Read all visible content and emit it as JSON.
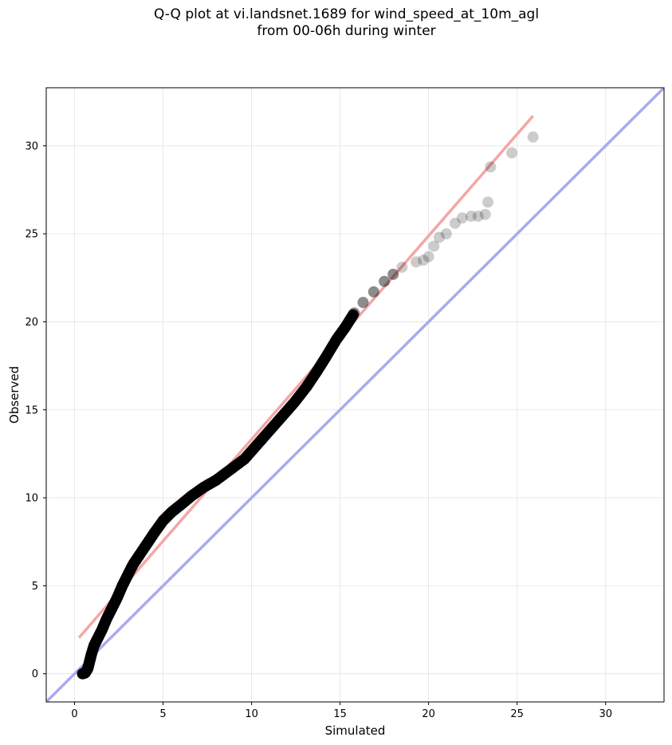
{
  "chart_data": {
    "type": "scatter",
    "title_lines": [
      "Q-Q plot at vi.landsnet.1689 for wind_speed_at_10m_agl",
      "from 00-06h during winter"
    ],
    "xlabel": "Simulated",
    "ylabel": "Observed",
    "xlim": [
      -1.6,
      33.3
    ],
    "ylim": [
      -1.6,
      33.3
    ],
    "xticks": [
      0,
      5,
      10,
      15,
      20,
      25,
      30
    ],
    "yticks": [
      0,
      5,
      10,
      15,
      20,
      25,
      30
    ],
    "grid": true,
    "reference_line": {
      "name": "1:1",
      "color": "#aaaaf0",
      "points": [
        [
          -1.6,
          -1.6
        ],
        [
          33.3,
          33.3
        ]
      ]
    },
    "fit_line": {
      "color": "#f4a6a6",
      "points": [
        [
          0.25,
          2.05
        ],
        [
          25.9,
          31.7
        ]
      ]
    },
    "point_color": "#000000",
    "series": [
      {
        "points": [
          [
            0.45,
            0.0
          ],
          [
            0.6,
            0.05
          ],
          [
            0.75,
            0.3
          ],
          [
            0.85,
            0.7
          ],
          [
            0.95,
            1.1
          ],
          [
            1.1,
            1.6
          ],
          [
            1.3,
            2.0
          ],
          [
            1.55,
            2.5
          ],
          [
            1.8,
            3.1
          ],
          [
            2.1,
            3.7
          ],
          [
            2.4,
            4.3
          ],
          [
            2.7,
            5.0
          ],
          [
            3.0,
            5.6
          ],
          [
            3.3,
            6.2
          ],
          [
            3.7,
            6.8
          ],
          [
            4.1,
            7.4
          ],
          [
            4.5,
            8.0
          ],
          [
            5.0,
            8.7
          ],
          [
            5.5,
            9.2
          ],
          [
            6.0,
            9.6
          ],
          [
            6.6,
            10.1
          ],
          [
            7.3,
            10.6
          ],
          [
            8.0,
            11.0
          ],
          [
            8.8,
            11.6
          ],
          [
            9.6,
            12.2
          ],
          [
            10.3,
            13.0
          ],
          [
            11.0,
            13.8
          ],
          [
            11.7,
            14.6
          ],
          [
            12.4,
            15.4
          ],
          [
            13.1,
            16.3
          ],
          [
            13.7,
            17.2
          ],
          [
            14.2,
            18.0
          ],
          [
            14.8,
            19.0
          ],
          [
            15.3,
            19.7
          ],
          [
            15.8,
            20.5
          ],
          [
            16.3,
            21.1
          ],
          [
            16.9,
            21.7
          ],
          [
            17.5,
            22.3
          ],
          [
            18.0,
            22.7
          ],
          [
            18.5,
            23.1
          ],
          [
            19.3,
            23.4
          ],
          [
            19.7,
            23.5
          ],
          [
            20.0,
            23.7
          ],
          [
            20.3,
            24.3
          ],
          [
            20.6,
            24.8
          ],
          [
            21.0,
            25.0
          ],
          [
            21.5,
            25.6
          ],
          [
            21.9,
            25.9
          ],
          [
            22.4,
            26.0
          ],
          [
            22.8,
            26.0
          ],
          [
            23.2,
            26.1
          ],
          [
            23.35,
            26.8
          ],
          [
            23.5,
            28.8
          ],
          [
            24.7,
            29.6
          ],
          [
            25.9,
            30.5
          ]
        ]
      }
    ]
  }
}
